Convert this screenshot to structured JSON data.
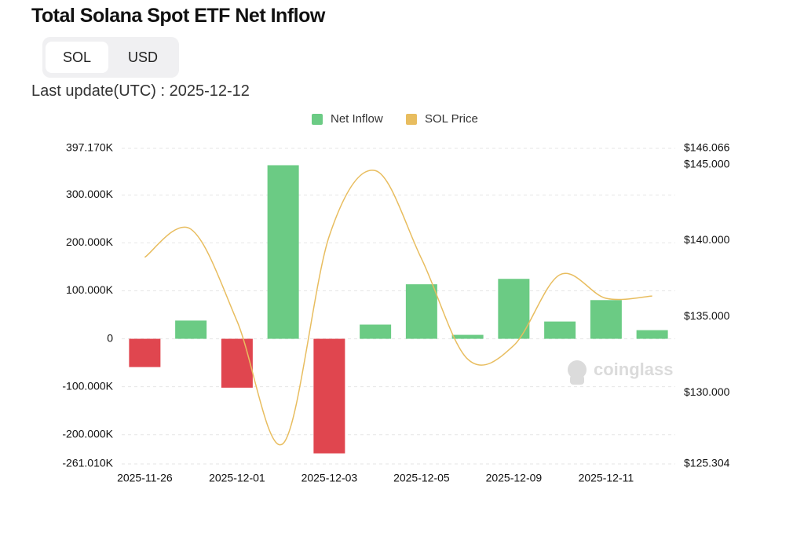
{
  "header": {
    "title": "Total Solana Spot ETF Net Inflow",
    "toggle": [
      "SOL",
      "USD"
    ],
    "last_update": "Last update(UTC) : 2025-12-12"
  },
  "watermark": "coinglass",
  "chart_data": {
    "type": "bar-line",
    "categories": [
      "2025-11-26",
      null,
      "2025-12-01",
      null,
      "2025-12-03",
      null,
      "2025-12-05",
      null,
      "2025-12-09",
      null,
      "2025-12-11",
      null
    ],
    "series": [
      {
        "name": "Net Inflow",
        "type": "bar",
        "color": "#6bcb84",
        "negative_color": "#e0464f",
        "values": [
          -59000,
          38000,
          -102000,
          362000,
          -239000,
          29600,
          113700,
          8200,
          125000,
          36000,
          80700,
          18000
        ]
      },
      {
        "name": "SOL Price",
        "type": "line",
        "axis": "y2",
        "color": "#e8bd5f",
        "values": [
          138900,
          140750,
          134700,
          126650,
          140300,
          144600,
          138800,
          132200,
          133100,
          137750,
          136200,
          136350
        ]
      }
    ],
    "ylim": [
      -261010,
      397170
    ],
    "yticks": [
      {
        "value": 397170,
        "label": "397.170K"
      },
      {
        "value": 300000,
        "label": "300.000K"
      },
      {
        "value": 200000,
        "label": "200.000K"
      },
      {
        "value": 100000,
        "label": "100.000K"
      },
      0,
      {
        "value": -100000,
        "label": "-100.000K"
      },
      {
        "value": -200000,
        "label": "-200.000K"
      },
      {
        "value": -261010,
        "label": "-261.010K"
      }
    ],
    "y2lim": [
      125304,
      146066
    ],
    "y2ticks": [
      {
        "value": 146066,
        "label": "$146.066"
      },
      {
        "value": 145000,
        "label": "$145.000"
      },
      {
        "value": 140000,
        "label": "$140.000"
      },
      {
        "value": 135000,
        "label": "$135.000"
      },
      {
        "value": 130000,
        "label": "$130.000"
      },
      {
        "value": 125304,
        "label": "$125.304"
      }
    ],
    "grid": true
  }
}
